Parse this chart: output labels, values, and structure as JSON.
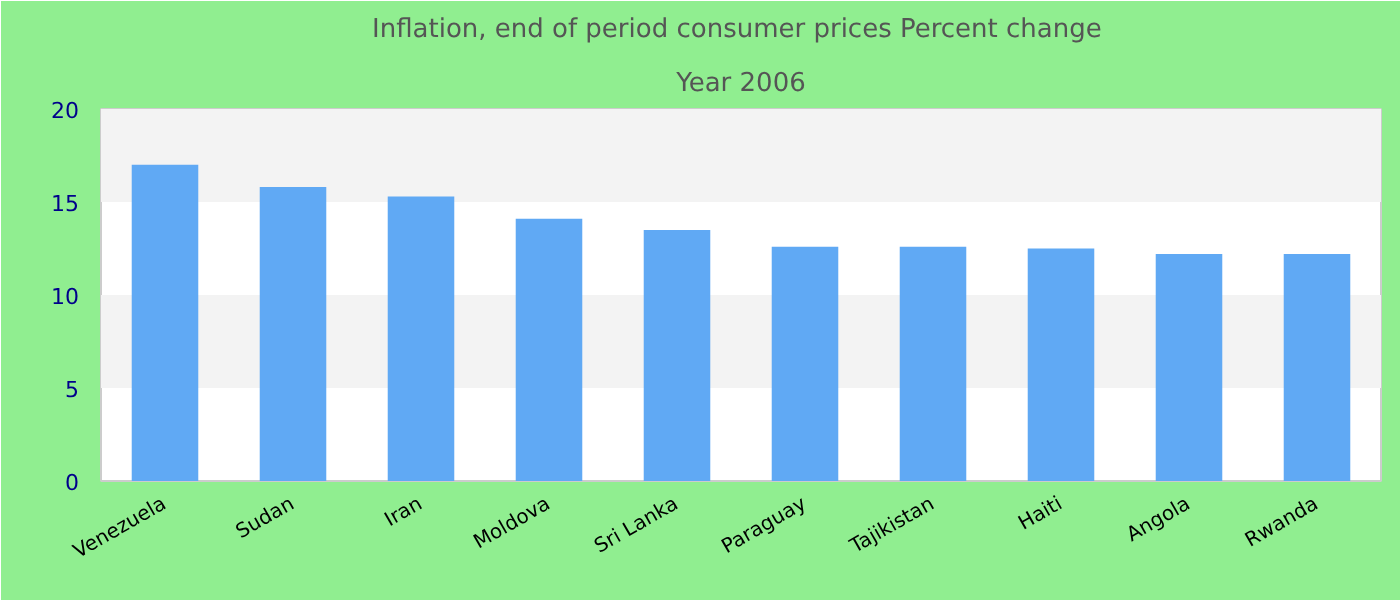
{
  "chart_data": {
    "type": "bar",
    "title": "Inflation, end of period consumer prices  Percent change",
    "subtitle": "Year 2006",
    "categories": [
      "Venezuela",
      "Sudan",
      "Iran",
      "Moldova",
      "Sri Lanka",
      "Paraguay",
      "Tajikistan",
      "Haiti",
      "Angola",
      "Rwanda"
    ],
    "values": [
      17.0,
      15.8,
      15.3,
      14.1,
      13.5,
      12.6,
      12.6,
      12.5,
      12.2,
      12.2
    ],
    "color": "#60a9f4",
    "ylim": [
      0,
      20
    ],
    "yticks": [
      0,
      5,
      10,
      15,
      20
    ],
    "bands": [
      {
        "axis": "y",
        "from": 5,
        "to": 10,
        "color": "#f3f3f3"
      },
      {
        "axis": "y",
        "from": 15,
        "to": 20,
        "color": "#f3f3f3"
      }
    ]
  }
}
